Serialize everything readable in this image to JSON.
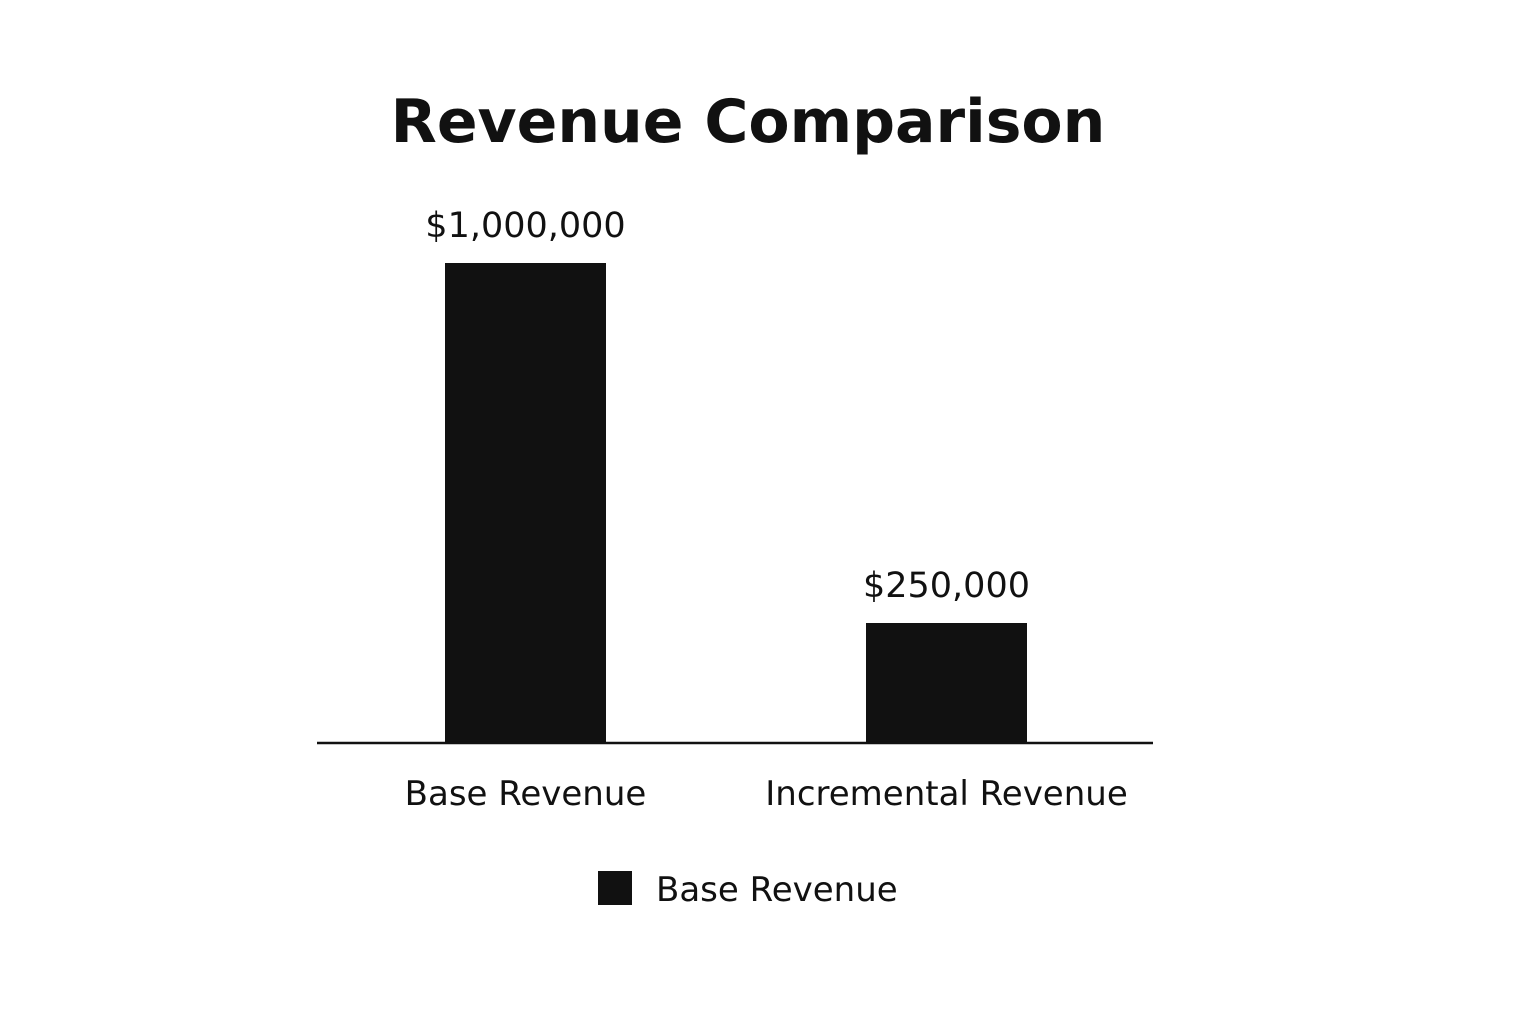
{
  "chart_data": {
    "type": "bar",
    "title": "Revenue Comparison",
    "xlabel": "",
    "ylabel": "",
    "categories": [
      "Base Revenue",
      "Incremental Revenue"
    ],
    "values": [
      1000000,
      250000
    ],
    "value_labels": [
      "$1,000,000",
      "$250,000"
    ],
    "ylim": [
      0,
      1000000
    ],
    "grid": false,
    "legend": {
      "placement": "bottom-center",
      "entries": [
        {
          "label": "Base Revenue",
          "color": "#111111"
        }
      ]
    },
    "colors": {
      "bar": "#111111",
      "axis": "#111111",
      "background": "#ffffff"
    }
  }
}
